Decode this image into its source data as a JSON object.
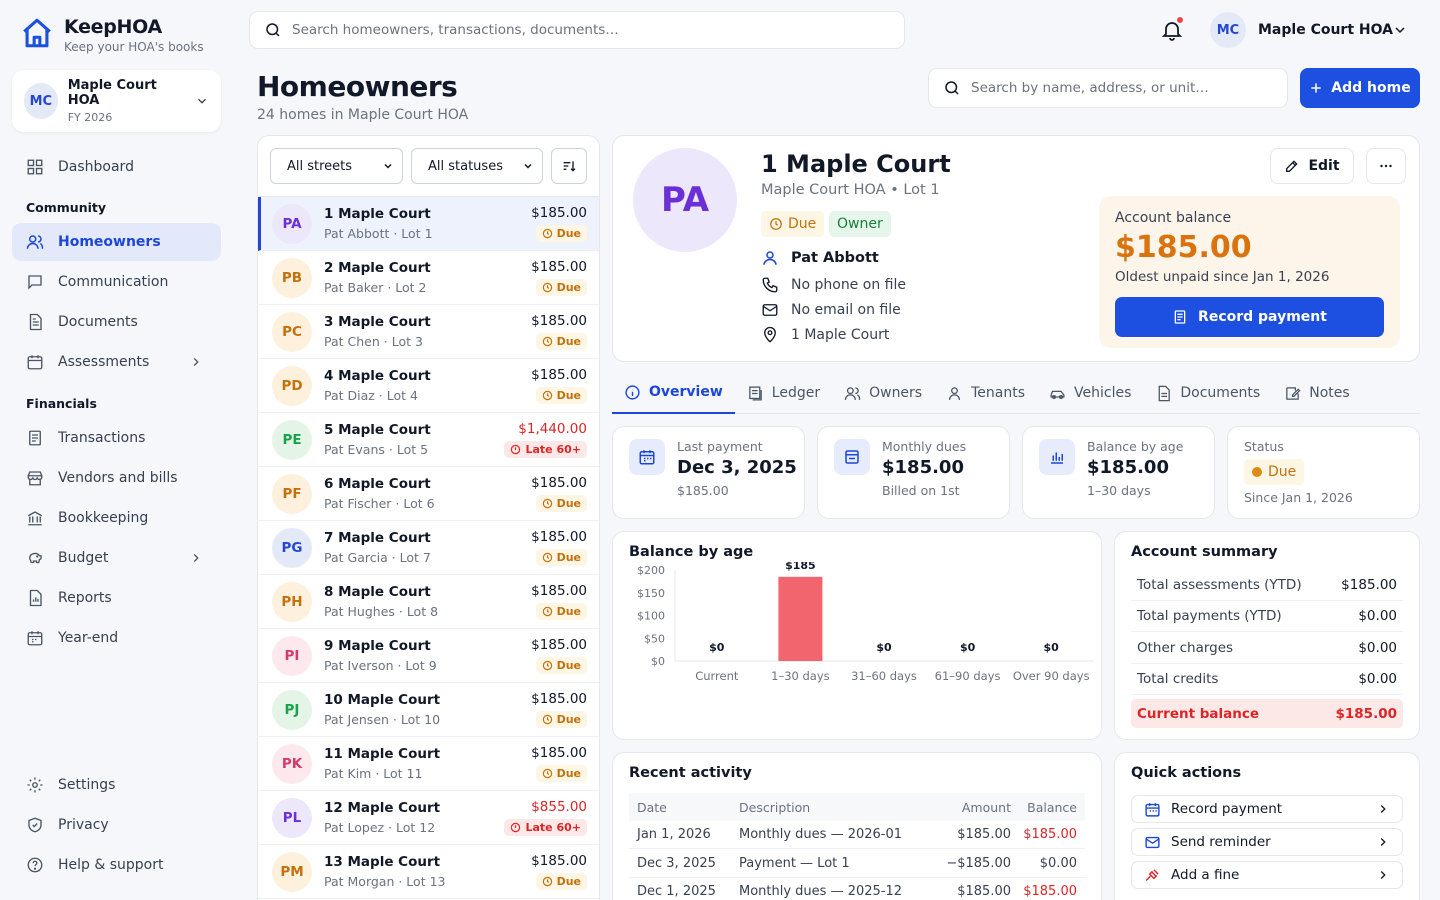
{
  "brand": {
    "name": "KeepHOA",
    "tagline": "Keep your HOA's books"
  },
  "hoa_switcher": {
    "initials": "MC",
    "name": "Maple Court HOA",
    "period": "FY 2026"
  },
  "nav": {
    "dashboard": "Dashboard",
    "section_community": "Community",
    "homeowners": "Homeowners",
    "communication": "Communication",
    "documents": "Documents",
    "assessments": "Assessments",
    "section_financials": "Financials",
    "transactions": "Transactions",
    "vendors": "Vendors and bills",
    "bookkeeping": "Bookkeeping",
    "budget": "Budget",
    "reports": "Reports",
    "year_end": "Year-end",
    "settings": "Settings",
    "privacy": "Privacy",
    "help": "Help & support"
  },
  "topbar": {
    "search_placeholder": "Search homeowners, transactions, documents…",
    "user_initials": "MC",
    "user_name": "Maple Court HOA"
  },
  "page": {
    "title": "Homeowners",
    "subtitle": "24 homes in Maple Court HOA",
    "search_placeholder": "Search by name, address, or unit…",
    "add_button": "Add home"
  },
  "filters": {
    "street": "All streets",
    "status": "All statuses"
  },
  "homes": [
    {
      "initials": "PA",
      "address": "1 Maple Court",
      "sub": "Pat Abbott · Lot 1",
      "amount": "$185.00",
      "status": "Due",
      "late": false,
      "bg": "#ece7fb",
      "fg": "#6b2fd6",
      "active": true
    },
    {
      "initials": "PB",
      "address": "2 Maple Court",
      "sub": "Pat Baker · Lot 2",
      "amount": "$185.00",
      "status": "Due",
      "late": false,
      "bg": "#fdf0dc",
      "fg": "#c2710c"
    },
    {
      "initials": "PC",
      "address": "3 Maple Court",
      "sub": "Pat Chen · Lot 3",
      "amount": "$185.00",
      "status": "Due",
      "late": false,
      "bg": "#fdf0dc",
      "fg": "#c2710c"
    },
    {
      "initials": "PD",
      "address": "4 Maple Court",
      "sub": "Pat Diaz · Lot 4",
      "amount": "$185.00",
      "status": "Due",
      "late": false,
      "bg": "#fdf0dc",
      "fg": "#c2710c"
    },
    {
      "initials": "PE",
      "address": "5 Maple Court",
      "sub": "Pat Evans · Lot 5",
      "amount": "$1,440.00",
      "status": "Late 60+",
      "late": true,
      "bg": "#e4f5e8",
      "fg": "#16a34a"
    },
    {
      "initials": "PF",
      "address": "6 Maple Court",
      "sub": "Pat Fischer · Lot 6",
      "amount": "$185.00",
      "status": "Due",
      "late": false,
      "bg": "#fdf0dc",
      "fg": "#c2710c"
    },
    {
      "initials": "PG",
      "address": "7 Maple Court",
      "sub": "Pat Garcia · Lot 7",
      "amount": "$185.00",
      "status": "Due",
      "late": false,
      "bg": "#e4e9f7",
      "fg": "#2447d0"
    },
    {
      "initials": "PH",
      "address": "8 Maple Court",
      "sub": "Pat Hughes · Lot 8",
      "amount": "$185.00",
      "status": "Due",
      "late": false,
      "bg": "#fdf0dc",
      "fg": "#c2710c"
    },
    {
      "initials": "PI",
      "address": "9 Maple Court",
      "sub": "Pat Iverson · Lot 9",
      "amount": "$185.00",
      "status": "Due",
      "late": false,
      "bg": "#fde8ee",
      "fg": "#d63a6a"
    },
    {
      "initials": "PJ",
      "address": "10 Maple Court",
      "sub": "Pat Jensen · Lot 10",
      "amount": "$185.00",
      "status": "Due",
      "late": false,
      "bg": "#e4f5e8",
      "fg": "#16a34a"
    },
    {
      "initials": "PK",
      "address": "11 Maple Court",
      "sub": "Pat Kim · Lot 11",
      "amount": "$185.00",
      "status": "Due",
      "late": false,
      "bg": "#fde8ee",
      "fg": "#d63a6a"
    },
    {
      "initials": "PL",
      "address": "12 Maple Court",
      "sub": "Pat Lopez · Lot 12",
      "amount": "$855.00",
      "status": "Late 60+",
      "late": true,
      "bg": "#ece7fb",
      "fg": "#6b2fd6"
    },
    {
      "initials": "PM",
      "address": "13 Maple Court",
      "sub": "Pat Morgan · Lot 13",
      "amount": "$185.00",
      "status": "Due",
      "late": false,
      "bg": "#fdf0dc",
      "fg": "#c2710c"
    }
  ],
  "detail": {
    "initials": "PA",
    "title": "1 Maple Court",
    "subtitle": "Maple Court HOA • Lot 1",
    "status": "Due",
    "role": "Owner",
    "owner": "Pat Abbott",
    "phone": "No phone on file",
    "email": "No email on file",
    "address": "1 Maple Court",
    "edit": "Edit",
    "balance_label": "Account balance",
    "balance": "$185.00",
    "balance_sub": "Oldest unpaid since Jan 1, 2026",
    "record_payment": "Record payment"
  },
  "tabs": [
    "Overview",
    "Ledger",
    "Owners",
    "Tenants",
    "Vehicles",
    "Documents",
    "Notes"
  ],
  "stats": {
    "last_payment": {
      "label": "Last payment",
      "value": "Dec 3, 2025",
      "sub": "$185.00"
    },
    "monthly_dues": {
      "label": "Monthly dues",
      "value": "$185.00",
      "sub": "Billed on 1st"
    },
    "balance_age": {
      "label": "Balance by age",
      "value": "$185.00",
      "sub": "1–30 days"
    },
    "status": {
      "label": "Status",
      "value": "Due",
      "sub": "Since Jan 1, 2026"
    }
  },
  "chart_data": {
    "type": "bar",
    "title": "Balance by age",
    "categories": [
      "Current",
      "1–30 days",
      "31–60 days",
      "61–90 days",
      "Over 90 days"
    ],
    "values": [
      0,
      185,
      0,
      0,
      0
    ],
    "value_labels": [
      "$0",
      "$185",
      "$0",
      "$0",
      "$0"
    ],
    "yticks": [
      "$0",
      "$50",
      "$100",
      "$150",
      "$200"
    ],
    "ylim": [
      0,
      200
    ],
    "color": "#f2646e"
  },
  "summary": {
    "title": "Account summary",
    "rows": [
      {
        "label": "Total assessments (YTD)",
        "value": "$185.00"
      },
      {
        "label": "Total payments (YTD)",
        "value": "$0.00"
      },
      {
        "label": "Other charges",
        "value": "$0.00"
      },
      {
        "label": "Total credits",
        "value": "$0.00"
      },
      {
        "label": "Current balance",
        "value": "$185.00"
      }
    ]
  },
  "activity": {
    "title": "Recent activity",
    "headers": {
      "date": "Date",
      "desc": "Description",
      "amount": "Amount",
      "balance": "Balance"
    },
    "rows": [
      {
        "date": "Jan 1, 2026",
        "desc": "Monthly dues — 2026-01",
        "amount": "$185.00",
        "balance": "$185.00"
      },
      {
        "date": "Dec 3, 2025",
        "desc": "Payment — Lot 1",
        "amount": "−$185.00",
        "balance": "$0.00"
      },
      {
        "date": "Dec 1, 2025",
        "desc": "Monthly dues — 2025-12",
        "amount": "$185.00",
        "balance": "$185.00"
      }
    ]
  },
  "quick_actions": {
    "title": "Quick actions",
    "items": [
      "Record payment",
      "Send reminder",
      "Add a fine"
    ]
  }
}
